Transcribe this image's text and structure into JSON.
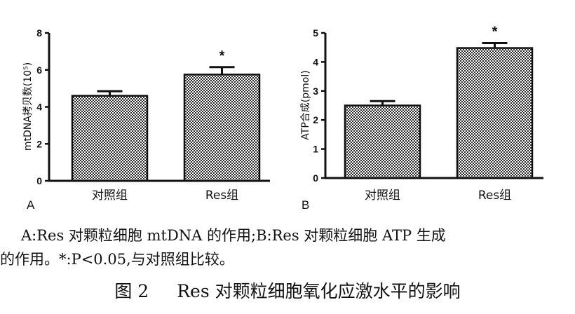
{
  "chart_data": [
    {
      "type": "bar",
      "panel_label": "A",
      "categories": [
        "对照组",
        "Res组"
      ],
      "values": [
        4.6,
        5.75
      ],
      "errors": [
        0.25,
        0.4
      ],
      "significance": [
        "",
        "*"
      ],
      "ylabel": "mtDNA拷贝数(10⁵)",
      "ylim": [
        0,
        8
      ],
      "yticks": [
        "0",
        "2",
        "4",
        "6",
        "8"
      ],
      "grid": false
    },
    {
      "type": "bar",
      "panel_label": "B",
      "categories": [
        "对照组",
        "Res组"
      ],
      "values": [
        2.5,
        4.48
      ],
      "errors": [
        0.15,
        0.17
      ],
      "significance": [
        "",
        "*"
      ],
      "ylabel": "ATP合成(pmol)",
      "ylim": [
        0,
        5
      ],
      "yticks": [
        "0",
        "1",
        "2",
        "3",
        "4",
        "5"
      ],
      "grid": false
    }
  ],
  "caption": {
    "line1": "A:Res 对颗粒细胞 mtDNA 的作用;B:Res 对颗粒细胞 ATP 生成",
    "line2": "的作用。*:P<0.05,与对照组比较。",
    "figure_number": "图 2",
    "figure_title": "Res 对颗粒细胞氧化应激水平的影响"
  },
  "colors": {
    "bar_fill": "#8a8a8a",
    "bar_pattern_light": "#ffffff",
    "axis": "#111111"
  }
}
